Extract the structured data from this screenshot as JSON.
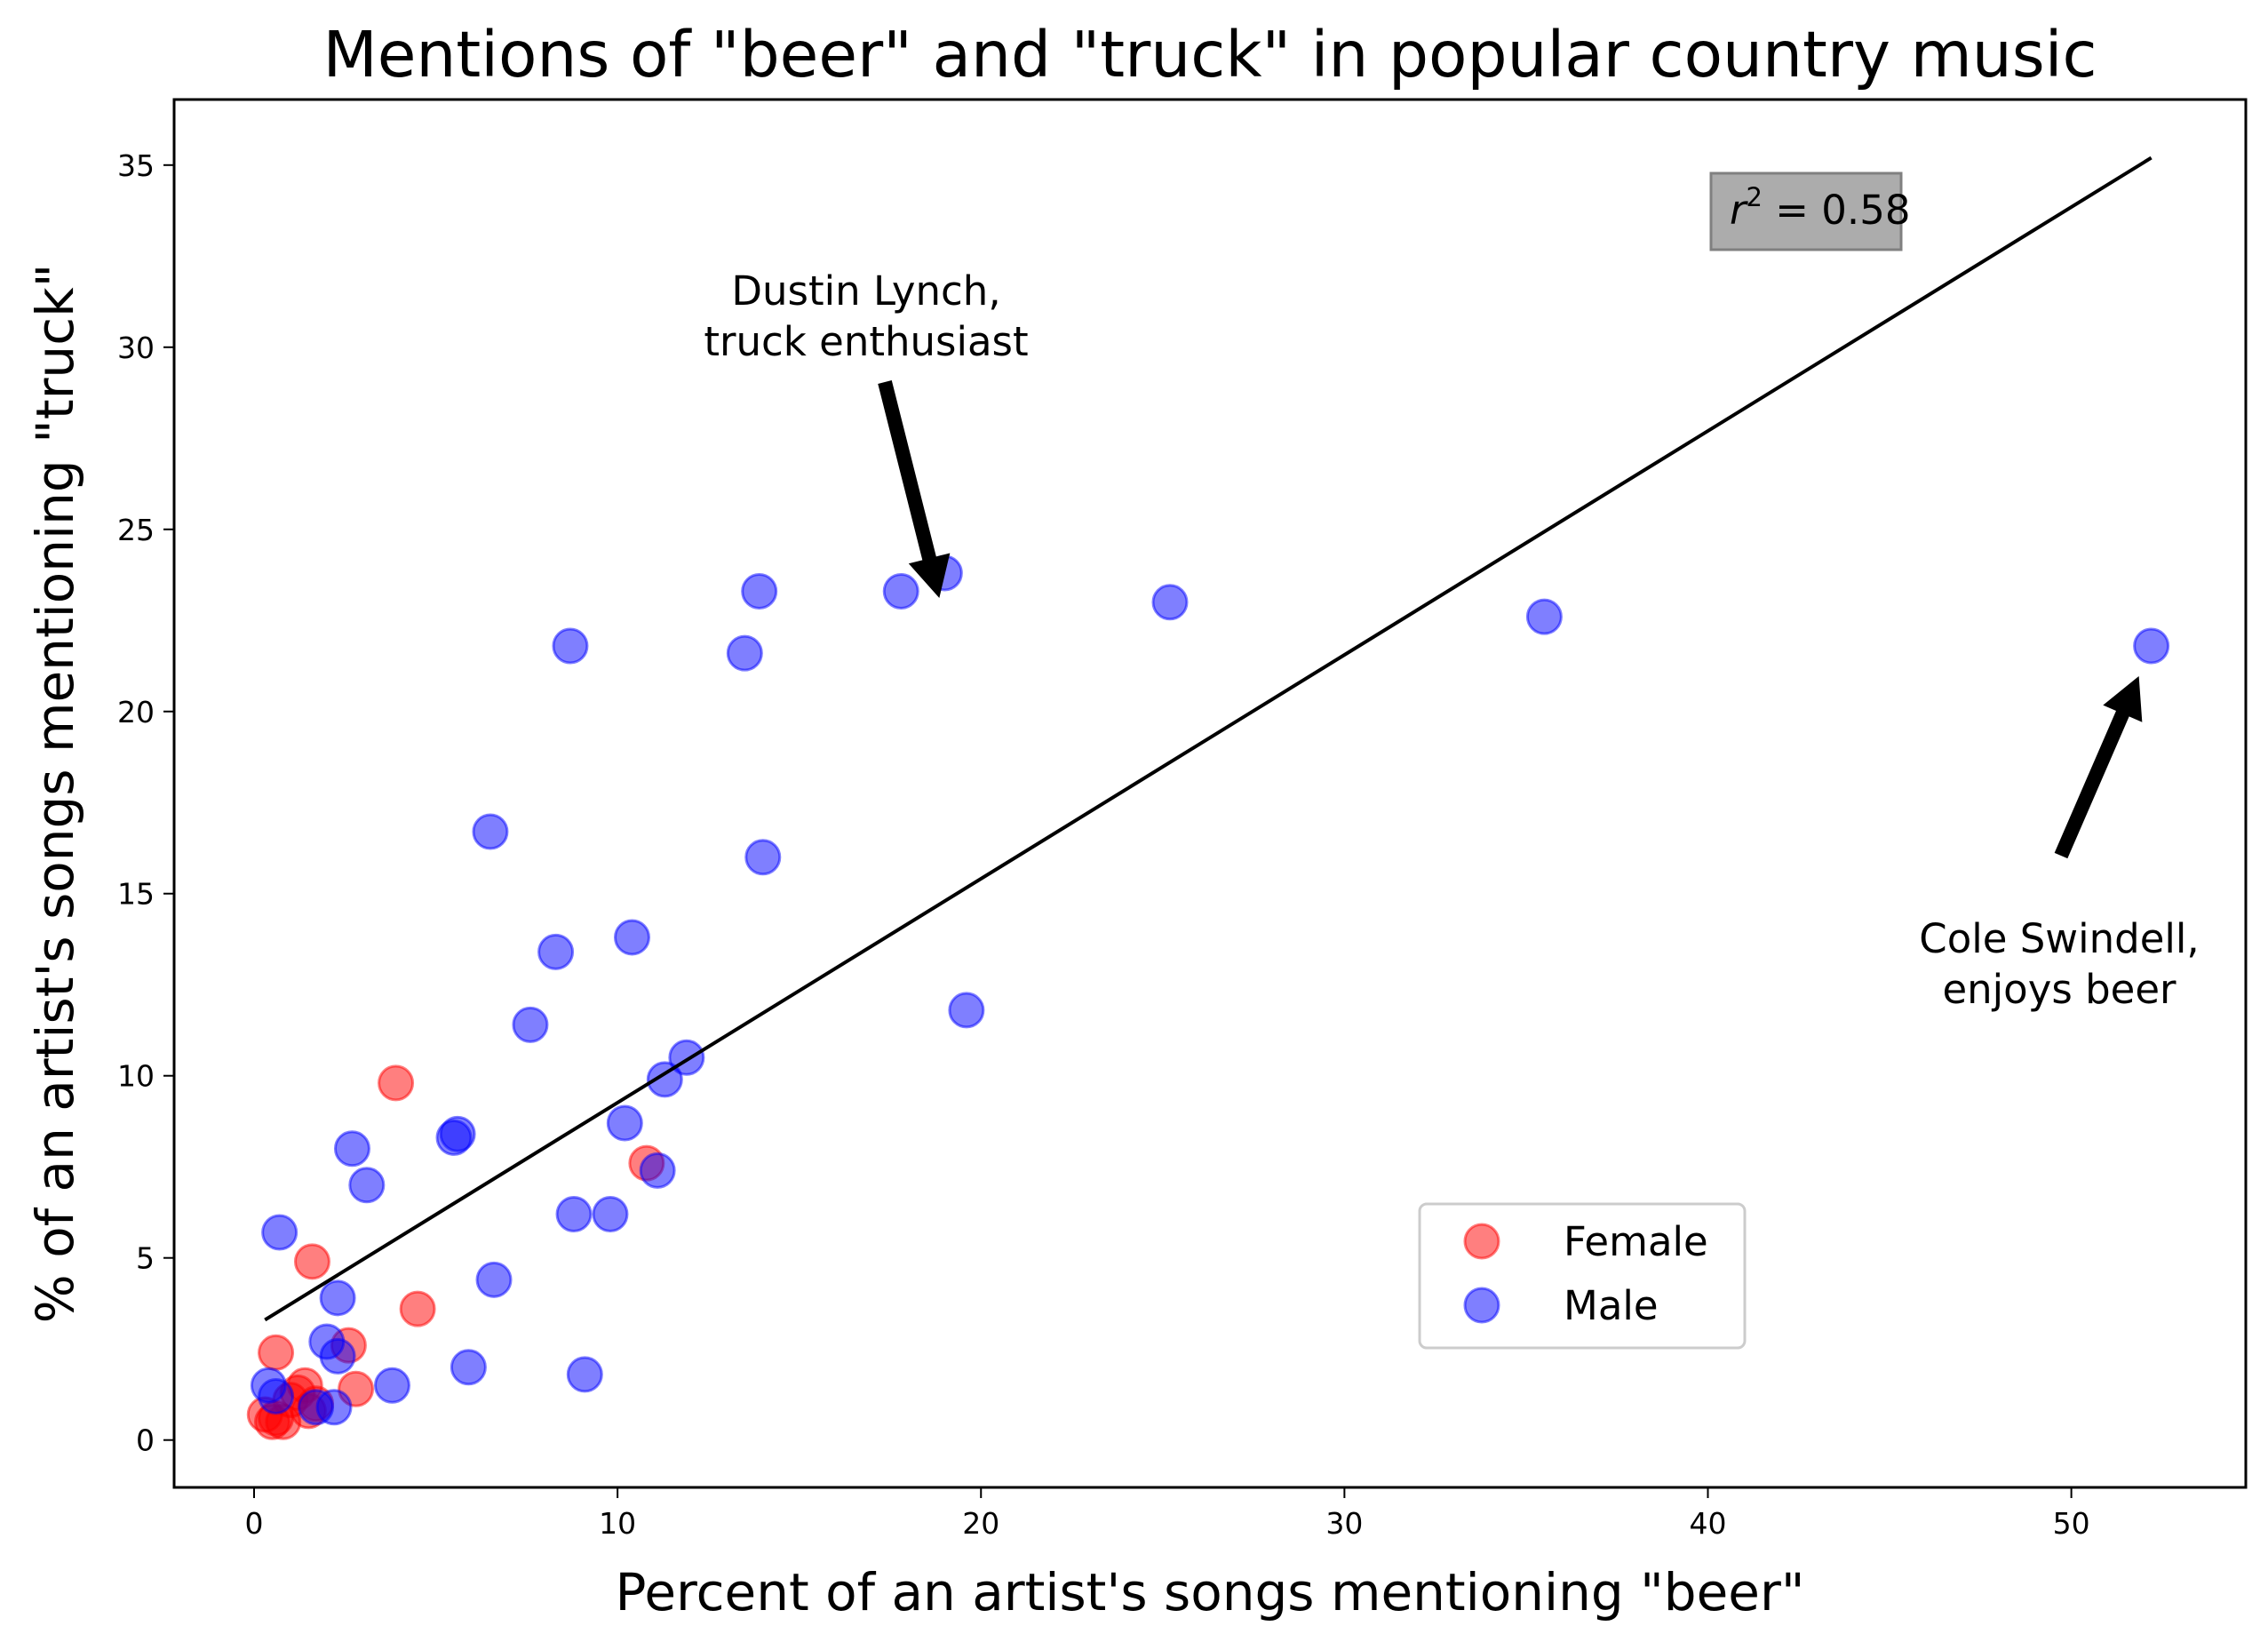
{
  "chart_data": {
    "type": "scatter",
    "title": "Mentions of \"beer\" and \"truck\" in popular country music",
    "xlabel": "Percent of an artist's songs mentioning \"beer\"",
    "ylabel": "% of an artist's songs mentioning \"truck\"",
    "xlim": [
      -2.2,
      54.8
    ],
    "ylim": [
      -1.3,
      36.8
    ],
    "xticks": [
      0,
      10,
      20,
      30,
      40,
      50
    ],
    "yticks": [
      0,
      5,
      10,
      15,
      20,
      25,
      30,
      35
    ],
    "grid": false,
    "legend": {
      "position": "lower-right"
    },
    "series": [
      {
        "name": "Female",
        "color": "#ff0000",
        "x": [
          0.3,
          0.5,
          0.6,
          0.8,
          1.0,
          1.2,
          1.4,
          1.5,
          1.6,
          1.7,
          2.6,
          2.8,
          3.9,
          4.5,
          10.8,
          0.6
        ],
        "y": [
          0.7,
          0.5,
          0.6,
          0.5,
          1.1,
          1.3,
          1.5,
          0.8,
          4.9,
          1.0,
          2.6,
          1.4,
          9.8,
          3.6,
          7.6,
          2.4
        ]
      },
      {
        "name": "Male",
        "color": "#0000ff",
        "x": [
          0.4,
          0.6,
          0.7,
          1.7,
          2.0,
          2.2,
          2.3,
          2.3,
          2.7,
          3.1,
          3.8,
          5.5,
          5.6,
          5.9,
          6.5,
          6.6,
          7.6,
          8.3,
          8.7,
          8.8,
          9.1,
          9.8,
          10.2,
          10.4,
          11.1,
          11.3,
          11.9,
          13.5,
          13.9,
          14.0,
          17.8,
          19.0,
          19.6,
          25.2,
          35.5,
          52.2
        ],
        "y": [
          1.5,
          1.2,
          5.7,
          0.9,
          2.7,
          0.9,
          2.3,
          3.9,
          8.0,
          7.0,
          1.5,
          8.3,
          8.4,
          2.0,
          16.7,
          4.4,
          11.4,
          13.4,
          21.8,
          6.2,
          1.8,
          6.2,
          8.7,
          13.8,
          7.4,
          9.9,
          10.5,
          21.6,
          23.3,
          16.0,
          23.3,
          23.8,
          11.8,
          23.0,
          22.6,
          21.8
        ]
      }
    ],
    "fit_line": {
      "x": [
        0.3,
        52.2
      ],
      "y": [
        3.3,
        35.2
      ]
    },
    "stat_box": {
      "prefix": "r",
      "superscript": "2",
      "text": " = 0.58"
    },
    "annotations": [
      {
        "lines": [
          "Dustin Lynch,",
          "truck enthusiast"
        ],
        "target": [
          19.0,
          23.8
        ]
      },
      {
        "lines": [
          "Cole Swindell,",
          "enjoys beer"
        ],
        "target": [
          52.2,
          21.8
        ]
      }
    ]
  }
}
